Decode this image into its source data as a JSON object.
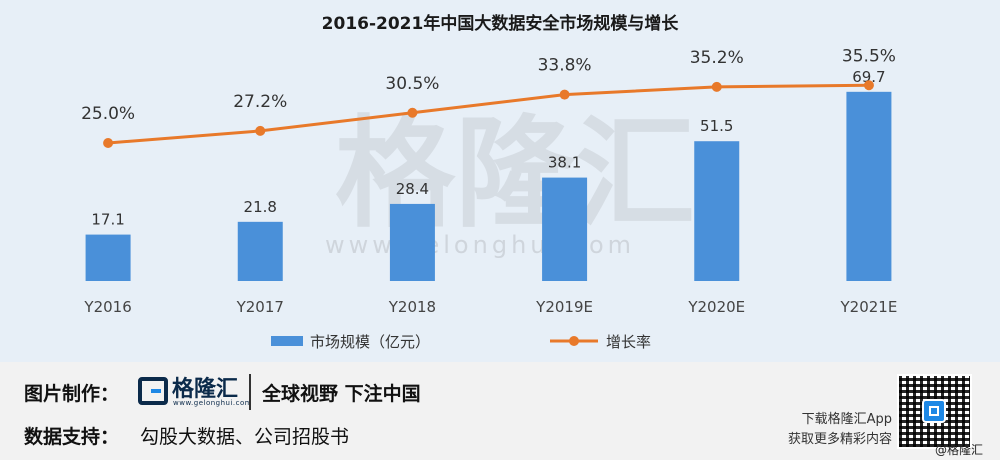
{
  "chart_data": {
    "title": "2016-2021年中国大数据安全市场规模与增长",
    "categories": [
      "Y2016",
      "Y2017",
      "Y2018",
      "Y2019E",
      "Y2020E",
      "Y2021E"
    ],
    "series": [
      {
        "name": "市场规模（亿元）",
        "type": "bar",
        "values": [
          17.1,
          21.8,
          28.4,
          38.1,
          51.5,
          69.7
        ],
        "labels": [
          "17.1",
          "21.8",
          "28.4",
          "38.1",
          "51.5",
          "69.7"
        ],
        "color": "#4a90d9"
      },
      {
        "name": "增长率",
        "type": "line",
        "values": [
          25.0,
          27.2,
          30.5,
          33.8,
          35.2,
          35.5
        ],
        "labels": [
          "25.0%",
          "27.2%",
          "30.5%",
          "33.8%",
          "35.2%",
          "35.5%"
        ],
        "color": "#e8792a"
      }
    ],
    "legend": "bottom-center",
    "grid": false,
    "watermark": {
      "text": "格隆汇",
      "url": "www.gelonghui.com"
    }
  },
  "footer": {
    "made_by_label": "图片制作：",
    "brand_name": "格隆汇",
    "brand_domain": "www.gelonghui.com",
    "slogan": "全球视野 下注中国",
    "data_source_label": "数据支持：",
    "data_source": "勾股大数据、公司招股书",
    "promo_line1": "下载格隆汇App",
    "promo_line2": "获取更多精彩内容",
    "corner_mark": "@格隆汇"
  }
}
